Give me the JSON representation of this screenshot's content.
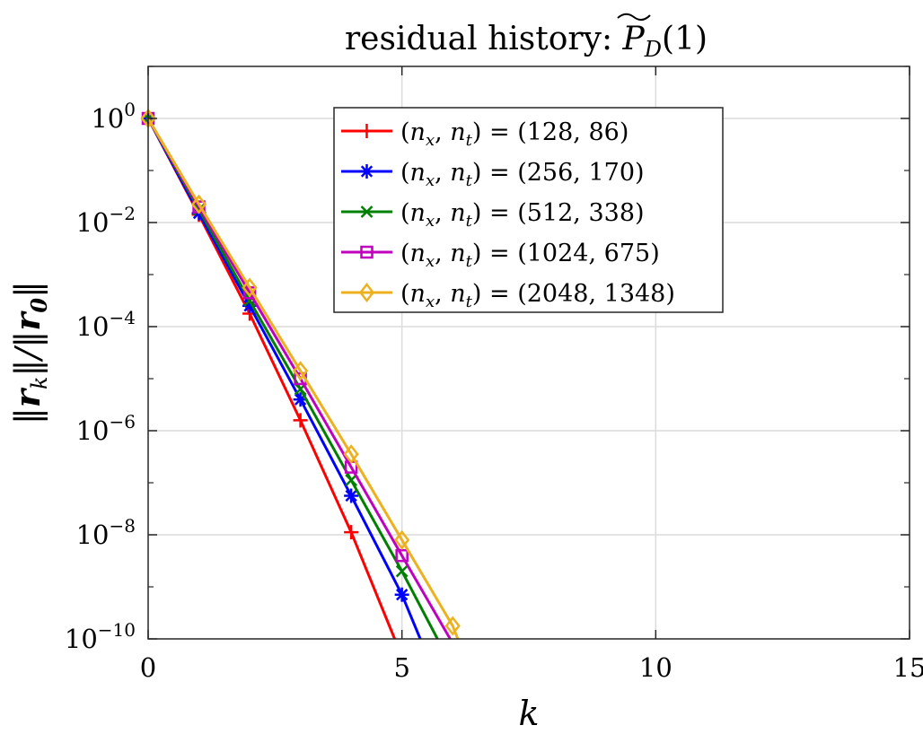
{
  "chart_data": {
    "type": "line",
    "title": "residual history: P̃_D(1)",
    "title_prefix": "residual history: ",
    "title_math": "P",
    "title_sub": "D",
    "title_arg": "(1)",
    "xlabel": "k",
    "ylabel": "||r_k||/||r_0||",
    "ylabel_parts": [
      "‖",
      "r",
      "k",
      "‖/‖",
      "r",
      "0",
      "‖"
    ],
    "xscale": "linear",
    "yscale": "log",
    "xlim": [
      0,
      15
    ],
    "ylim_exp": [
      -10,
      1
    ],
    "xticks": [
      0,
      5,
      10,
      15
    ],
    "xtick_labels": [
      "0",
      "5",
      "10",
      "15"
    ],
    "yticks_exp": [
      0,
      -2,
      -4,
      -6,
      -8,
      -10
    ],
    "ytick_base": "10",
    "ytick_exponents": [
      "0",
      "−2",
      "−4",
      "−6",
      "−8",
      "−10"
    ],
    "grid": true,
    "legend_position": "top-center",
    "series": [
      {
        "name": "(n_x, n_t) = (128, 86)",
        "nx": "128",
        "nt": "86",
        "color": "#ff0000",
        "marker": "plus",
        "x": [
          0,
          1,
          2,
          3,
          4,
          4.857
        ],
        "log10y": [
          0,
          -1.85,
          -3.75,
          -5.8,
          -7.95,
          -10.0
        ]
      },
      {
        "name": "(n_x, n_t) = (256, 170)",
        "nx": "256",
        "nt": "170",
        "color": "#0000ff",
        "marker": "asterisk",
        "x": [
          0,
          1,
          2,
          3,
          4,
          5,
          5.361
        ],
        "log10y": [
          0,
          -1.82,
          -3.6,
          -5.4,
          -7.25,
          -9.15,
          -10.0
        ]
      },
      {
        "name": "(n_x, n_t) = (512, 338)",
        "nx": "512",
        "nt": "338",
        "color": "#008000",
        "marker": "x",
        "x": [
          0,
          1,
          2,
          3,
          4,
          5,
          5.7
        ],
        "log10y": [
          0,
          -1.75,
          -3.5,
          -5.2,
          -6.95,
          -8.7,
          -10.0
        ]
      },
      {
        "name": "(n_x, n_t) = (1024, 675)",
        "nx": "1024",
        "nt": "675",
        "color": "#bf00bf",
        "marker": "square",
        "x": [
          0,
          1,
          2,
          3,
          4,
          5,
          5.95
        ],
        "log10y": [
          0,
          -1.7,
          -3.35,
          -5.0,
          -6.7,
          -8.4,
          -10.0
        ]
      },
      {
        "name": "(n_x, n_t) = (2048, 1348)",
        "nx": "2048",
        "nt": "1348",
        "color": "#edb120",
        "marker": "diamond",
        "x": [
          0,
          1,
          2,
          3,
          4,
          5,
          6,
          6.1
        ],
        "log10y": [
          0,
          -1.65,
          -3.25,
          -4.85,
          -6.45,
          -8.1,
          -9.75,
          -10.0
        ]
      }
    ]
  }
}
